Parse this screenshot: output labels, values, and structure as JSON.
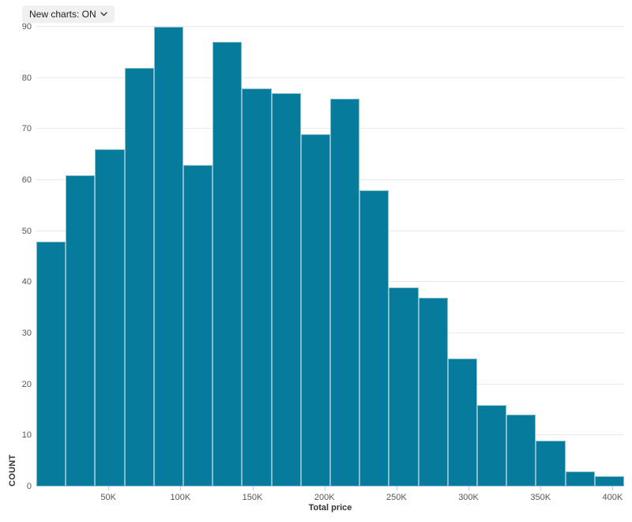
{
  "toolbar": {
    "new_charts_toggle": {
      "label": "New charts: ON"
    }
  },
  "icons": {
    "chevron_down": "chevron-down"
  },
  "chart_data": {
    "type": "bar",
    "subtype": "histogram",
    "title": "",
    "xlabel": "Total price",
    "ylabel": "COUNT",
    "bar_color": "#077B9C",
    "bar_stroke": "rgba(255,255,255,0.5)",
    "grid_color": "#e9e9e9",
    "axis_text_color": "#565656",
    "grid": "horizontal",
    "legend_position": "none",
    "ylim": [
      0,
      90
    ],
    "xlim": [
      0,
      408000
    ],
    "bin_width": 20400,
    "y_ticks": [
      0,
      10,
      20,
      30,
      40,
      50,
      60,
      70,
      80,
      90
    ],
    "x_ticks": [
      {
        "value": 50000,
        "label": "50K"
      },
      {
        "value": 100000,
        "label": "100K"
      },
      {
        "value": 150000,
        "label": "150K"
      },
      {
        "value": 200000,
        "label": "200K"
      },
      {
        "value": 250000,
        "label": "250K"
      },
      {
        "value": 300000,
        "label": "300K"
      },
      {
        "value": 350000,
        "label": "350K"
      },
      {
        "value": 400000,
        "label": "400K"
      }
    ],
    "values": [
      48,
      61,
      66,
      82,
      90,
      63,
      87,
      78,
      77,
      69,
      76,
      58,
      39,
      37,
      25,
      16,
      14,
      9,
      3,
      2
    ]
  }
}
